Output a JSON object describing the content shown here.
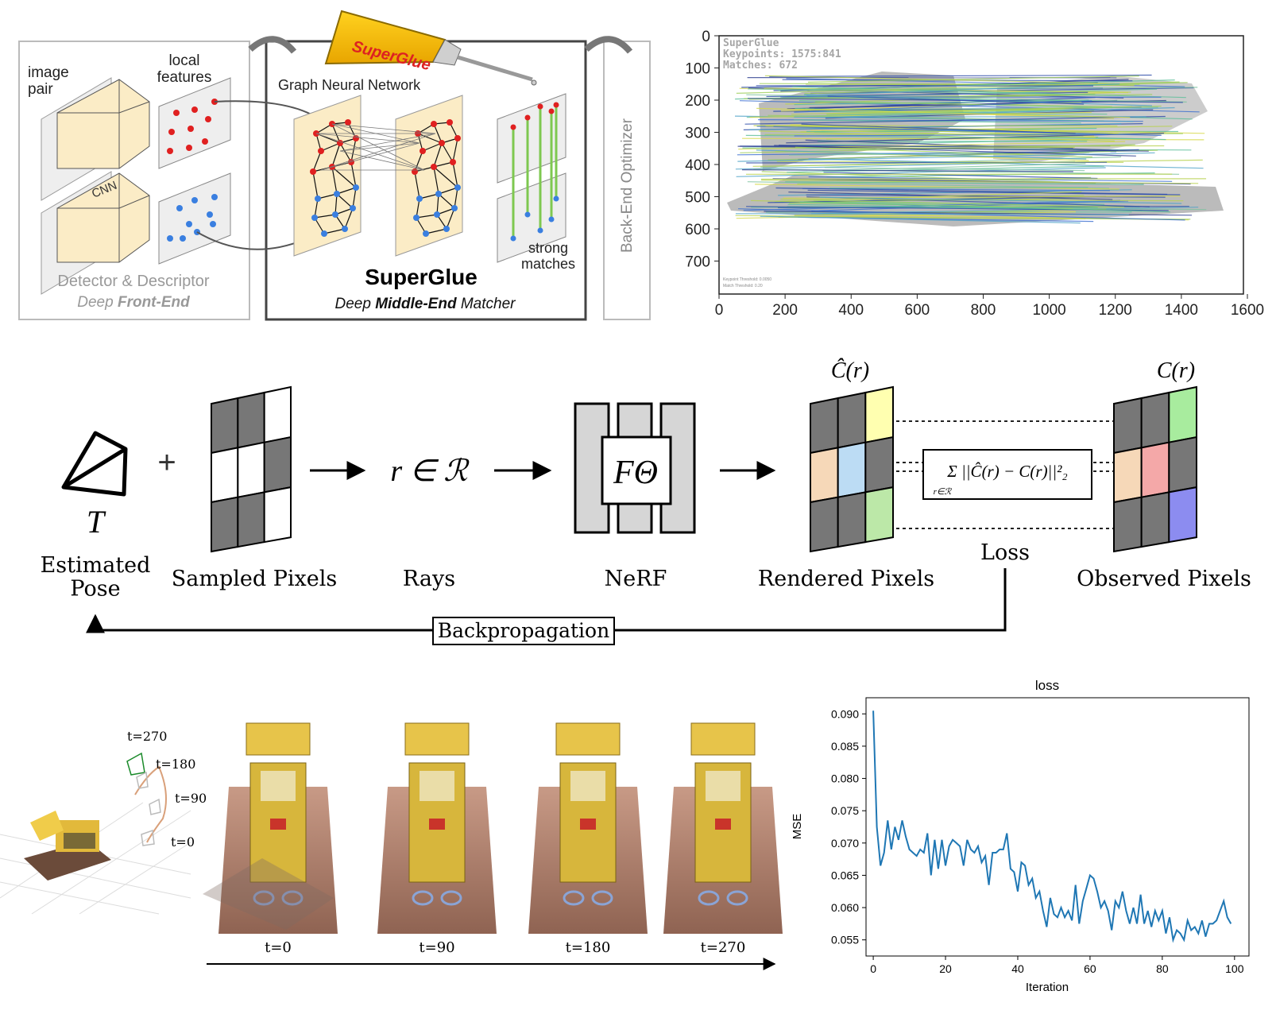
{
  "superglue_diagram": {
    "image_pair": "image\npair",
    "local_features": "local\nfeatures",
    "cnn": "CNN",
    "gnn": "Graph Neural Network",
    "tube_label": "SuperGlue",
    "strong_matches": "strong\nmatches",
    "back_end": "Back-End Optimizer",
    "detector": "Detector & Descriptor",
    "deep": "Deep ",
    "front_end": "Front-End",
    "title": "SuperGlue",
    "sub_deep": "Deep ",
    "sub_middle": "Middle-End",
    "sub_matcher": " Matcher",
    "colors": {
      "red": "#e02020",
      "blue": "#3a7fe0",
      "green": "#7ec850",
      "cream": "#fbecc6"
    }
  },
  "match_plot": {
    "overlay_lines": [
      "SuperGlue",
      "Keypoints: 1575:841",
      "Matches: 672"
    ],
    "footer_lines": [
      "Keypoint Threshold: 0.0050",
      "Match Threshold: 0.20"
    ],
    "x_ticks": [
      "0",
      "200",
      "400",
      "600",
      "800",
      "1000",
      "1200",
      "1400",
      "1600"
    ],
    "y_ticks": [
      "0",
      "100",
      "200",
      "300",
      "400",
      "500",
      "600",
      "700"
    ]
  },
  "nerf_pipeline": {
    "pose_symbol": "T",
    "pose_label": "Estimated\nPose",
    "plus": "+",
    "sampled_label": "Sampled Pixels",
    "rays_math": "r ∈ ℛ",
    "rays_label": "Rays",
    "nerf_symbol": "FΘ",
    "nerf_label": "NeRF",
    "rendered_symbol": "Ĉ(r)",
    "rendered_label": "Rendered Pixels",
    "loss_formula": "Σ ||Ĉ(r) − C(r)||²₂",
    "loss_sub": "r∈ℛ",
    "loss_label": "Loss",
    "observed_symbol": "C(r)",
    "observed_label": "Observed Pixels",
    "backprop_label": "Backpropagation"
  },
  "trajectory": {
    "labels": [
      "t=270",
      "t=180",
      "t=90",
      "t=0"
    ]
  },
  "frames": {
    "labels": [
      "t=0",
      "t=90",
      "t=180",
      "t=270"
    ]
  },
  "chart_data": {
    "type": "line",
    "title": "loss",
    "xlabel": "Iteration",
    "ylabel": "MSE",
    "xlim": [
      -2,
      104
    ],
    "ylim": [
      0.0525,
      0.0925
    ],
    "x_ticks": [
      0,
      20,
      40,
      60,
      80,
      100
    ],
    "y_ticks": [
      0.055,
      0.06,
      0.065,
      0.07,
      0.075,
      0.08,
      0.085,
      0.09
    ],
    "y_tick_labels": [
      "0.055",
      "0.060",
      "0.065",
      "0.070",
      "0.075",
      "0.080",
      "0.085",
      "0.090"
    ],
    "grid": false,
    "color": "#1f77b4",
    "x": [
      0,
      1,
      2,
      3,
      4,
      5,
      6,
      7,
      8,
      9,
      10,
      11,
      12,
      13,
      14,
      15,
      16,
      17,
      18,
      19,
      20,
      21,
      22,
      23,
      24,
      25,
      26,
      27,
      28,
      29,
      30,
      31,
      32,
      33,
      34,
      35,
      36,
      37,
      38,
      39,
      40,
      41,
      42,
      43,
      44,
      45,
      46,
      47,
      48,
      49,
      50,
      51,
      52,
      53,
      54,
      55,
      56,
      57,
      58,
      59,
      60,
      61,
      62,
      63,
      64,
      65,
      66,
      67,
      68,
      69,
      70,
      71,
      72,
      73,
      74,
      75,
      76,
      77,
      78,
      79,
      80,
      81,
      82,
      83,
      84,
      85,
      86,
      87,
      88,
      89,
      90,
      91,
      92,
      93,
      94,
      95,
      96,
      97,
      98,
      99
    ],
    "values": [
      0.0905,
      0.0725,
      0.0665,
      0.0685,
      0.0735,
      0.069,
      0.0725,
      0.0705,
      0.0735,
      0.071,
      0.069,
      0.0685,
      0.068,
      0.069,
      0.0685,
      0.0715,
      0.065,
      0.0705,
      0.066,
      0.0705,
      0.0665,
      0.0695,
      0.0705,
      0.07,
      0.0695,
      0.0665,
      0.0705,
      0.069,
      0.0685,
      0.0695,
      0.067,
      0.068,
      0.0635,
      0.0685,
      0.0685,
      0.069,
      0.069,
      0.0715,
      0.066,
      0.0655,
      0.0625,
      0.067,
      0.0665,
      0.0635,
      0.0645,
      0.0615,
      0.0625,
      0.0595,
      0.057,
      0.0615,
      0.059,
      0.0585,
      0.06,
      0.0585,
      0.0595,
      0.058,
      0.0635,
      0.0575,
      0.061,
      0.063,
      0.065,
      0.0645,
      0.0625,
      0.06,
      0.061,
      0.0595,
      0.0565,
      0.061,
      0.06,
      0.0625,
      0.0595,
      0.0575,
      0.06,
      0.0575,
      0.062,
      0.0575,
      0.0595,
      0.057,
      0.0595,
      0.058,
      0.0595,
      0.056,
      0.0585,
      0.055,
      0.0565,
      0.056,
      0.055,
      0.058,
      0.0565,
      0.057,
      0.056,
      0.058,
      0.0555,
      0.0575,
      0.0575,
      0.058,
      0.0595,
      0.061,
      0.0585,
      0.0575
    ]
  }
}
